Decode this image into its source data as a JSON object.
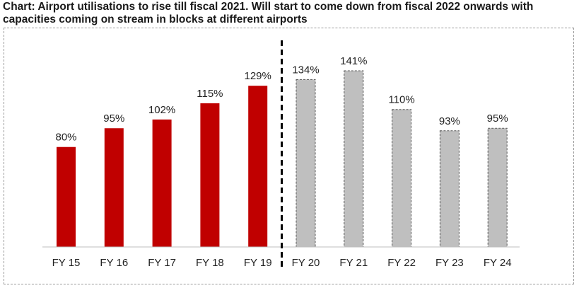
{
  "title": "Chart: Airport utilisations to rise till fiscal 2021. Will start to come down from fiscal 2022 onwards with capacities coming on stream in blocks at different airports",
  "colors": {
    "actual": "#c00000",
    "projected": "#bfbfbf",
    "projected_border": "#595959",
    "divider": "#000000",
    "axis": "#bfbfbf"
  },
  "chart_data": {
    "type": "bar",
    "title": "Airport utilisations to rise till fiscal 2021. Will start to come down from fiscal 2022 onwards with capacities coming on stream in blocks at different airports",
    "categories": [
      "FY 15",
      "FY 16",
      "FY 17",
      "FY 18",
      "FY 19",
      "FY 20",
      "FY 21",
      "FY 22",
      "FY 23",
      "FY 24"
    ],
    "values": [
      80,
      95,
      102,
      115,
      129,
      134,
      141,
      110,
      93,
      95
    ],
    "labels": [
      "80%",
      "95%",
      "102%",
      "115%",
      "129%",
      "134%",
      "141%",
      "110%",
      "93%",
      "95%"
    ],
    "segments": [
      "actual",
      "actual",
      "actual",
      "actual",
      "actual",
      "projected",
      "projected",
      "projected",
      "projected",
      "projected"
    ],
    "unit": "%",
    "ylim": [
      0,
      141
    ],
    "xlabel": "",
    "ylabel": "",
    "grid": false,
    "divider_after": "FY 19"
  }
}
